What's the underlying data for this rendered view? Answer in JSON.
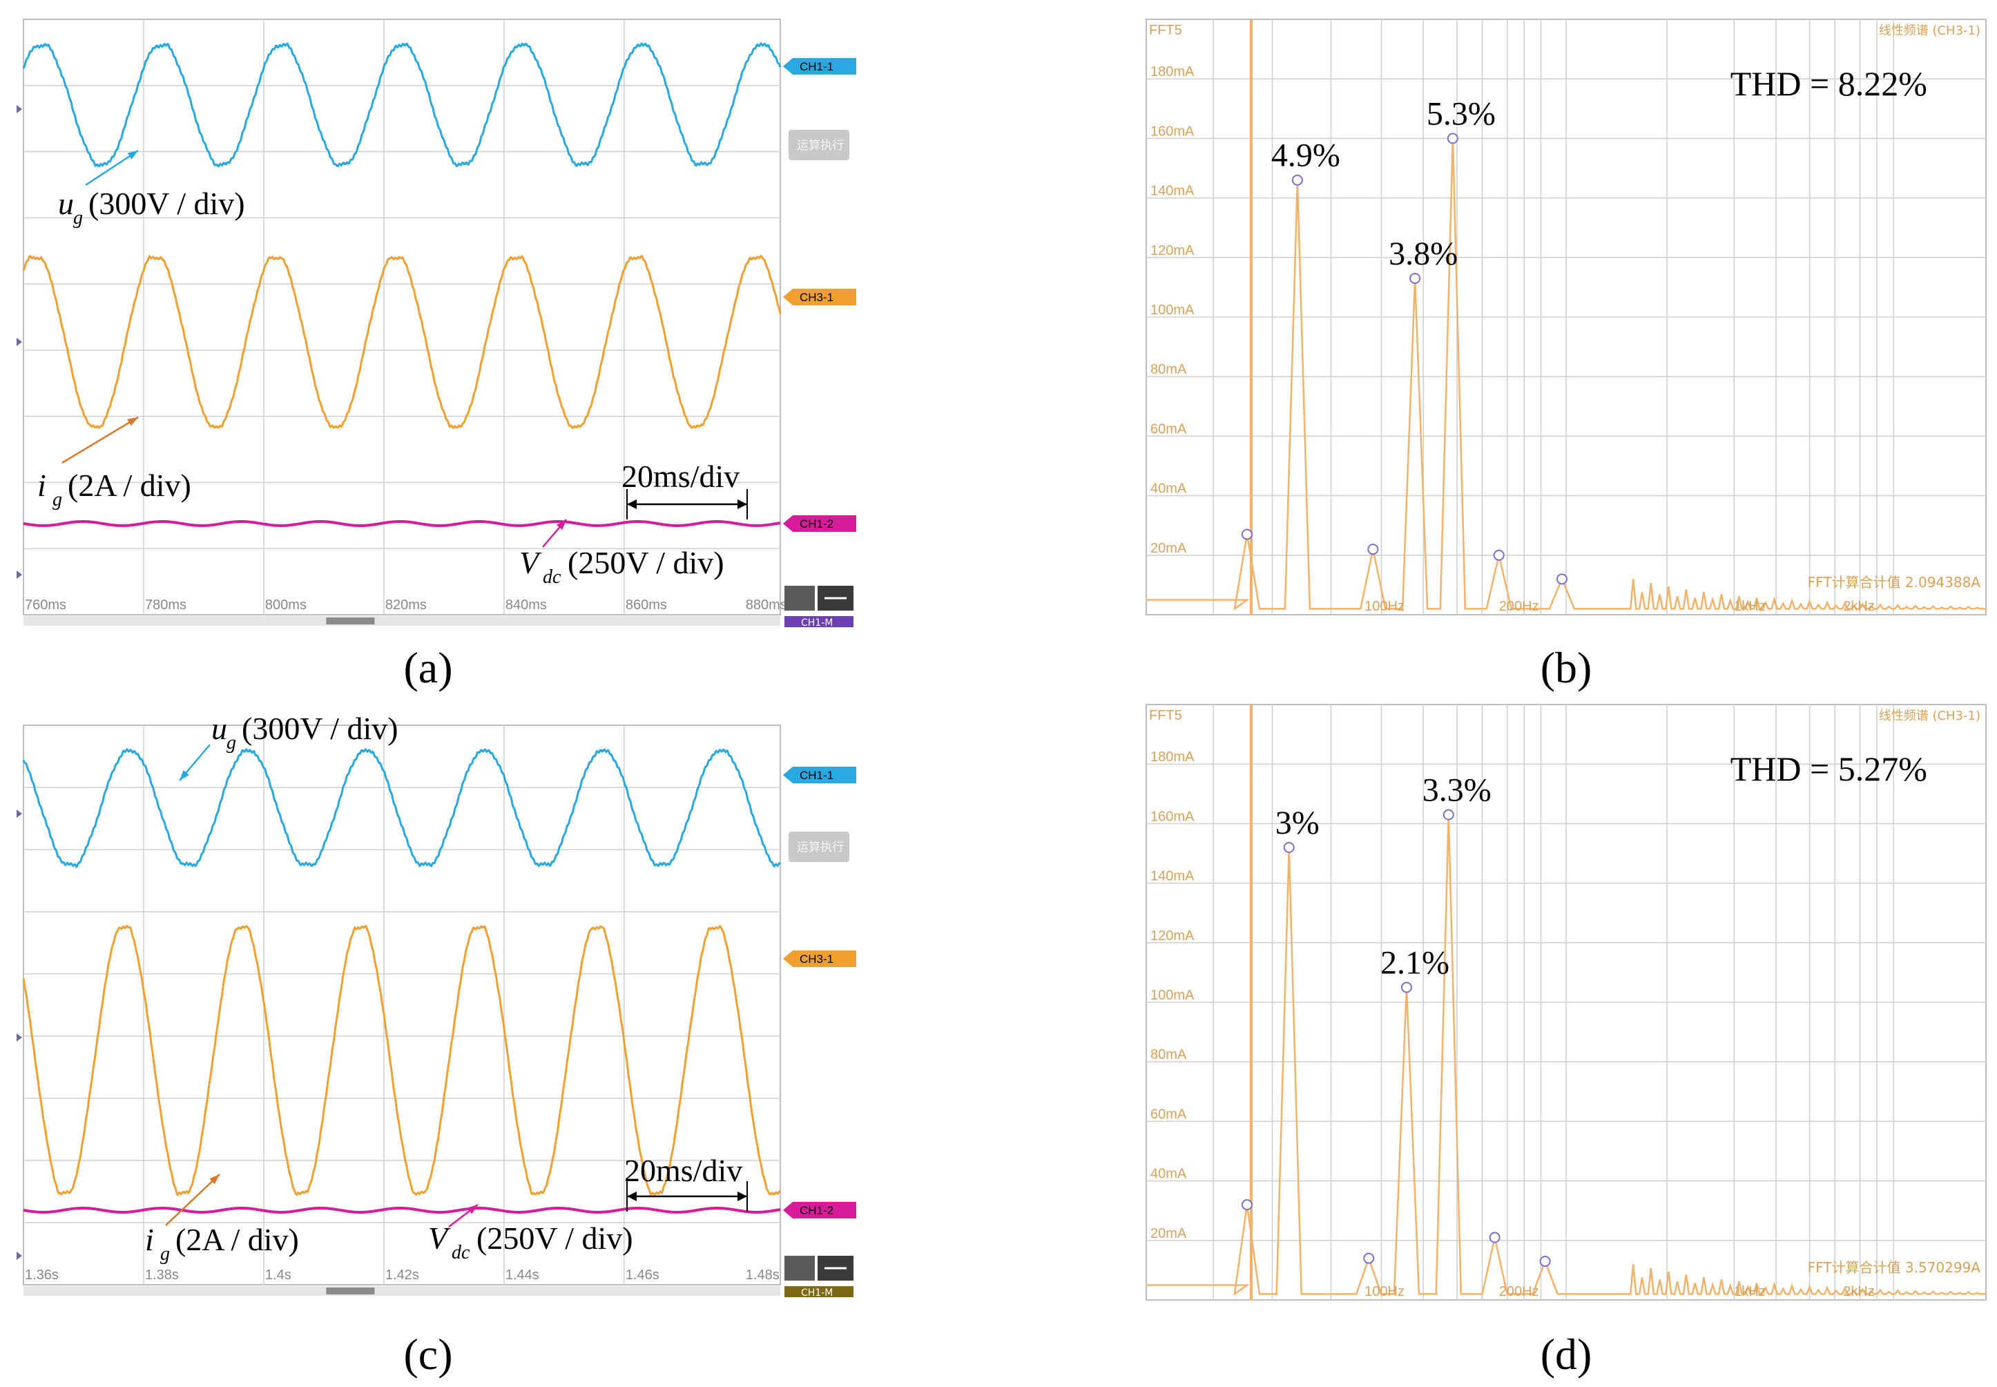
{
  "colors": {
    "ch1": "#29a8e0",
    "ch3": "#f0a030",
    "ch2": "#d81b9b",
    "fft": "#f3b26a",
    "marker": "#7a6fd0",
    "grid": "#cfcfcf"
  },
  "chart_data": [
    {
      "panel": "a",
      "type": "line",
      "caption": "(a)",
      "x_ticks": [
        "760ms",
        "780ms",
        "800ms",
        "820ms",
        "840ms",
        "860ms",
        "880ms"
      ],
      "series": [
        {
          "name": "CH1-1",
          "shape": "sine",
          "periods": 6.3,
          "phase": 0.1
        },
        {
          "name": "CH3-1",
          "shape": "sine",
          "periods": 6.3,
          "phase": 0.1
        },
        {
          "name": "CH1-2",
          "shape": "flat"
        }
      ],
      "annotations": [
        {
          "text": "u_g(300V / div)",
          "sym": "u",
          "sub": "g",
          "rest": "(300V / div)"
        },
        {
          "text": "i_g(2A / div)",
          "sym": "i",
          "sub": "g",
          "rest": "(2A / div)"
        },
        {
          "text": "V_dc(250V / div)",
          "sym": "V",
          "sub": "dc",
          "rest": "(250V / div)"
        },
        {
          "text": "20ms/div"
        }
      ],
      "button_text": "运算执行",
      "nav_text": "CH1-M"
    },
    {
      "panel": "b",
      "type": "bar",
      "caption": "(b)",
      "header_left": "FFT5",
      "header_right": "线性频谱 (CH3-1)",
      "ylabel_ticks": [
        "180mA",
        "160mA",
        "140mA",
        "120mA",
        "100mA",
        "80mA",
        "60mA",
        "40mA",
        "20mA"
      ],
      "ylim": [
        0,
        200
      ],
      "x_ticks": [
        "100Hz",
        "200Hz",
        "1kHz",
        "2kHz"
      ],
      "thd": "THD = 8.22%",
      "footer": "FFT计算合计值  2.094388A",
      "harmonics_mA": [
        27,
        146,
        22,
        113,
        160,
        20,
        12
      ],
      "labels": [
        "4.9%",
        "3.8%",
        "5.3%"
      ]
    },
    {
      "panel": "c",
      "type": "line",
      "caption": "(c)",
      "x_ticks": [
        "1.36s",
        "1.38s",
        "1.4s",
        "1.42s",
        "1.44s",
        "1.46s",
        "1.48s"
      ],
      "series": [
        {
          "name": "CH1-1",
          "shape": "sine",
          "periods": 6.4,
          "phase": 0.35
        },
        {
          "name": "CH3-1",
          "shape": "sine",
          "periods": 6.4,
          "phase": 0.35
        },
        {
          "name": "CH1-2",
          "shape": "flat"
        }
      ],
      "annotations": [
        {
          "text": "u_g(300V / div)",
          "sym": "u",
          "sub": "g",
          "rest": "(300V / div)"
        },
        {
          "text": "i_g(2A / div)",
          "sym": "i",
          "sub": "g",
          "rest": "(2A / div)"
        },
        {
          "text": "V_dc(250V / div)",
          "sym": "V",
          "sub": "dc",
          "rest": "(250V / div)"
        },
        {
          "text": "20ms/div"
        }
      ],
      "button_text": "运算执行",
      "nav_text": "CH1-M"
    },
    {
      "panel": "d",
      "type": "bar",
      "caption": "(d)",
      "header_left": "FFT5",
      "header_right": "线性频谱 (CH3-1)",
      "ylabel_ticks": [
        "180mA",
        "160mA",
        "140mA",
        "120mA",
        "100mA",
        "80mA",
        "60mA",
        "40mA",
        "20mA"
      ],
      "ylim": [
        0,
        200
      ],
      "x_ticks": [
        "100Hz",
        "200Hz",
        "1kHz",
        "2kHz"
      ],
      "thd": "THD = 5.27%",
      "footer": "FFT计算合计值  3.570299A",
      "harmonics_mA": [
        32,
        152,
        14,
        105,
        163,
        21,
        13
      ],
      "labels": [
        "3%",
        "2.1%",
        "3.3%"
      ]
    }
  ]
}
